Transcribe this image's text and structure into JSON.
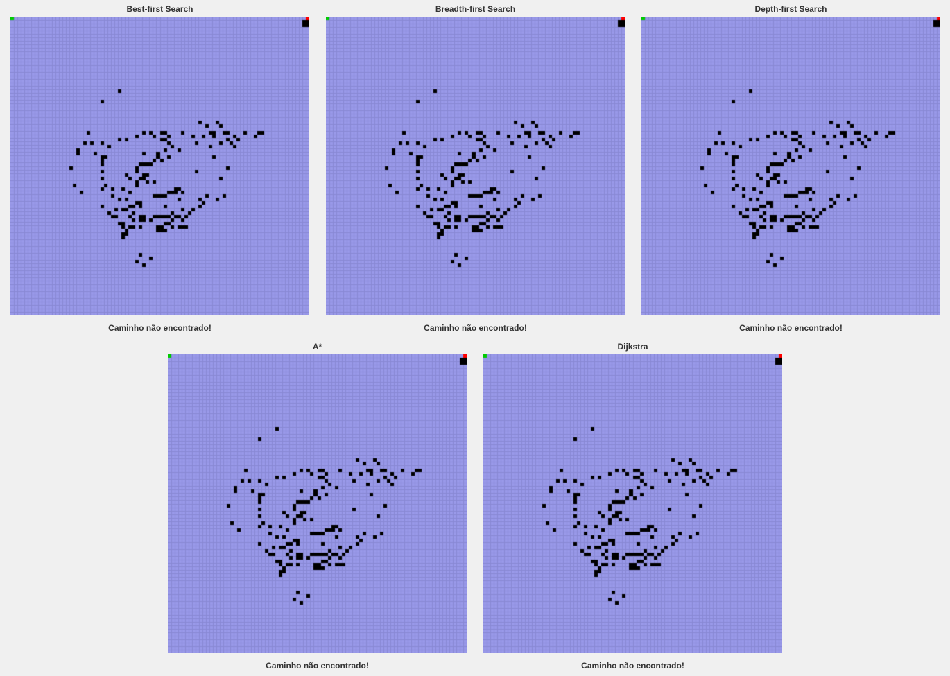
{
  "panels": [
    {
      "title": "Best-first Search",
      "status": "Caminho não encontrado!"
    },
    {
      "title": "Breadth-first Search",
      "status": "Caminho não encontrado!"
    },
    {
      "title": "Depth-first Search",
      "status": "Caminho não encontrado!"
    },
    {
      "title": "A*",
      "status": "Caminho não encontrado!"
    },
    {
      "title": "Dijkstra",
      "status": "Caminho não encontrado!"
    }
  ],
  "grid": {
    "cells": 86,
    "start": [
      0,
      0
    ],
    "goal": [
      85,
      0
    ],
    "walls": [
      [
        84,
        1
      ],
      [
        85,
        1
      ],
      [
        84,
        2
      ],
      [
        85,
        2
      ],
      [
        31,
        21
      ],
      [
        26,
        24
      ],
      [
        54,
        30
      ],
      [
        59,
        30
      ],
      [
        56,
        31
      ],
      [
        60,
        31
      ],
      [
        22,
        33
      ],
      [
        38,
        33
      ],
      [
        40,
        33
      ],
      [
        43,
        33
      ],
      [
        44,
        33
      ],
      [
        49,
        33
      ],
      [
        57,
        33
      ],
      [
        58,
        33
      ],
      [
        61,
        33
      ],
      [
        62,
        33
      ],
      [
        67,
        33
      ],
      [
        71,
        33
      ],
      [
        72,
        33
      ],
      [
        36,
        34
      ],
      [
        41,
        34
      ],
      [
        45,
        34
      ],
      [
        52,
        34
      ],
      [
        55,
        34
      ],
      [
        58,
        34
      ],
      [
        64,
        34
      ],
      [
        70,
        34
      ],
      [
        31,
        35
      ],
      [
        33,
        35
      ],
      [
        43,
        35
      ],
      [
        44,
        35
      ],
      [
        62,
        35
      ],
      [
        65,
        35
      ],
      [
        21,
        36
      ],
      [
        23,
        36
      ],
      [
        26,
        36
      ],
      [
        45,
        36
      ],
      [
        53,
        36
      ],
      [
        60,
        36
      ],
      [
        63,
        36
      ],
      [
        28,
        37
      ],
      [
        46,
        37
      ],
      [
        57,
        37
      ],
      [
        64,
        37
      ],
      [
        19,
        38
      ],
      [
        44,
        38
      ],
      [
        48,
        38
      ],
      [
        19,
        39
      ],
      [
        24,
        39
      ],
      [
        38,
        39
      ],
      [
        42,
        39
      ],
      [
        26,
        40
      ],
      [
        27,
        40
      ],
      [
        42,
        40
      ],
      [
        45,
        40
      ],
      [
        58,
        40
      ],
      [
        26,
        41
      ],
      [
        41,
        41
      ],
      [
        43,
        41
      ],
      [
        26,
        42
      ],
      [
        37,
        42
      ],
      [
        38,
        42
      ],
      [
        39,
        42
      ],
      [
        40,
        42
      ],
      [
        17,
        43
      ],
      [
        36,
        43
      ],
      [
        62,
        43
      ],
      [
        26,
        44
      ],
      [
        36,
        44
      ],
      [
        53,
        44
      ],
      [
        39,
        45
      ],
      [
        33,
        45
      ],
      [
        38,
        45
      ],
      [
        34,
        46
      ],
      [
        26,
        46
      ],
      [
        38,
        46
      ],
      [
        37,
        46
      ],
      [
        60,
        46
      ],
      [
        36,
        47
      ],
      [
        39,
        47
      ],
      [
        41,
        47
      ],
      [
        18,
        48
      ],
      [
        27,
        48
      ],
      [
        36,
        48
      ],
      [
        26,
        49
      ],
      [
        29,
        49
      ],
      [
        32,
        49
      ],
      [
        47,
        49
      ],
      [
        48,
        49
      ],
      [
        20,
        50
      ],
      [
        34,
        50
      ],
      [
        45,
        50
      ],
      [
        46,
        50
      ],
      [
        47,
        50
      ],
      [
        49,
        50
      ],
      [
        29,
        51
      ],
      [
        41,
        51
      ],
      [
        42,
        51
      ],
      [
        43,
        51
      ],
      [
        44,
        51
      ],
      [
        56,
        51
      ],
      [
        61,
        51
      ],
      [
        31,
        52
      ],
      [
        33,
        52
      ],
      [
        48,
        52
      ],
      [
        54,
        52
      ],
      [
        59,
        52
      ],
      [
        36,
        53
      ],
      [
        37,
        53
      ],
      [
        55,
        53
      ],
      [
        26,
        54
      ],
      [
        34,
        54
      ],
      [
        35,
        54
      ],
      [
        37,
        54
      ],
      [
        44,
        54
      ],
      [
        54,
        54
      ],
      [
        33,
        55
      ],
      [
        30,
        55
      ],
      [
        32,
        55
      ],
      [
        49,
        55
      ],
      [
        52,
        55
      ],
      [
        28,
        56
      ],
      [
        35,
        56
      ],
      [
        46,
        56
      ],
      [
        51,
        56
      ],
      [
        29,
        57
      ],
      [
        30,
        57
      ],
      [
        34,
        57
      ],
      [
        37,
        57
      ],
      [
        38,
        57
      ],
      [
        41,
        57
      ],
      [
        42,
        57
      ],
      [
        43,
        57
      ],
      [
        44,
        57
      ],
      [
        45,
        57
      ],
      [
        47,
        57
      ],
      [
        48,
        57
      ],
      [
        50,
        57
      ],
      [
        35,
        58
      ],
      [
        37,
        58
      ],
      [
        38,
        58
      ],
      [
        40,
        58
      ],
      [
        46,
        58
      ],
      [
        49,
        58
      ],
      [
        31,
        59
      ],
      [
        32,
        59
      ],
      [
        44,
        59
      ],
      [
        45,
        59
      ],
      [
        32,
        60
      ],
      [
        34,
        60
      ],
      [
        35,
        60
      ],
      [
        37,
        60
      ],
      [
        42,
        60
      ],
      [
        43,
        60
      ],
      [
        46,
        60
      ],
      [
        48,
        60
      ],
      [
        49,
        60
      ],
      [
        50,
        60
      ],
      [
        33,
        61
      ],
      [
        42,
        61
      ],
      [
        43,
        61
      ],
      [
        44,
        61
      ],
      [
        32,
        62
      ],
      [
        33,
        62
      ],
      [
        32,
        63
      ],
      [
        37,
        68
      ],
      [
        40,
        69
      ],
      [
        36,
        70
      ],
      [
        38,
        71
      ]
    ]
  },
  "colors": {
    "background": "#f0f0f0",
    "grid_fill": "#9999e8",
    "grid_line": "#8888d4",
    "wall": "#000000",
    "start": "#00cc00",
    "goal": "#ff0000",
    "text": "#333333"
  }
}
